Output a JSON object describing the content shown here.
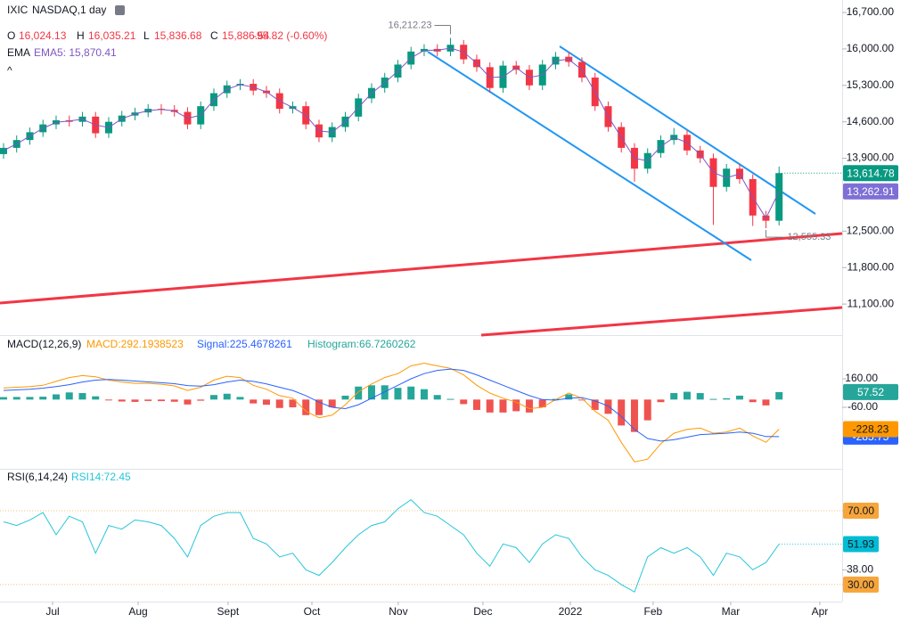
{
  "header": {
    "symbol": "IXIC",
    "exchange_interval": "NASDAQ,1 day",
    "ohlc": [
      {
        "label": "O",
        "value": "16,024.13"
      },
      {
        "label": "H",
        "value": "16,035.21"
      },
      {
        "label": "L",
        "value": "15,836.68"
      },
      {
        "label": "C",
        "value": "15,886.54"
      }
    ],
    "change": "-95.82 (-0.60%)",
    "ema_title": "EMA",
    "ema_value": "EMA5: 15,870.41",
    "collapse": "^"
  },
  "chart_data": [
    {
      "type": "candlestick",
      "up_color": "#089981",
      "down_color": "#f23645",
      "open": [
        13980,
        14100,
        14250,
        14400,
        14550,
        14630,
        14600,
        14700,
        14380,
        14600,
        14720,
        14780,
        14850,
        14830,
        14790,
        14550,
        14900,
        15150,
        15300,
        15330,
        15200,
        15150,
        14850,
        14900,
        14550,
        14300,
        14500,
        14700,
        15050,
        15250,
        15450,
        15700,
        15950,
        16000,
        15950,
        16080,
        15800,
        15650,
        15250,
        15680,
        15600,
        15300,
        15700,
        15850,
        15750,
        15450,
        14900,
        14500,
        14100,
        13700,
        14000,
        14250,
        14350,
        14050,
        13900,
        13350,
        13700,
        13500,
        12800,
        12700
      ],
      "high": [
        14190,
        14340,
        14490,
        14640,
        14720,
        14720,
        14790,
        14790,
        14690,
        14810,
        14870,
        14940,
        14940,
        14920,
        14880,
        14990,
        15240,
        15390,
        15420,
        15420,
        15290,
        15240,
        14990,
        14990,
        14640,
        14590,
        14790,
        15140,
        15340,
        15540,
        15790,
        16040,
        16090,
        16090,
        16212.23,
        16170,
        15890,
        15740,
        15770,
        15770,
        15690,
        15790,
        15940,
        15940,
        15840,
        15540,
        14990,
        14590,
        14190,
        14090,
        14340,
        14480,
        14440,
        14140,
        13990,
        13790,
        13790,
        13590,
        12890,
        13740
      ],
      "low": [
        13890,
        14010,
        14160,
        14310,
        14460,
        14510,
        14510,
        14290,
        14290,
        14510,
        14630,
        14690,
        14740,
        14700,
        14460,
        14460,
        14810,
        15060,
        15210,
        15110,
        15060,
        14760,
        14760,
        14460,
        14210,
        14210,
        14410,
        14610,
        14960,
        15160,
        15360,
        15610,
        15860,
        15860,
        15860,
        15710,
        15560,
        15160,
        15160,
        15510,
        15210,
        15210,
        15610,
        15660,
        15360,
        14810,
        14410,
        14010,
        13450,
        13610,
        13910,
        14160,
        13960,
        13810,
        12620,
        13260,
        13410,
        12600,
        12555.33,
        12610
      ],
      "close": [
        14100,
        14250,
        14400,
        14550,
        14630,
        14600,
        14700,
        14380,
        14600,
        14720,
        14780,
        14850,
        14830,
        14790,
        14550,
        14900,
        15150,
        15300,
        15330,
        15200,
        15150,
        14850,
        14900,
        14550,
        14300,
        14500,
        14700,
        15050,
        15250,
        15450,
        15700,
        15950,
        16000,
        15950,
        16080,
        15800,
        15650,
        15250,
        15680,
        15600,
        15300,
        15700,
        15850,
        15750,
        15450,
        14900,
        14500,
        14100,
        13700,
        14000,
        14250,
        14350,
        14050,
        13900,
        13350,
        13700,
        13500,
        12800,
        12700,
        13614.78
      ],
      "series": [
        {
          "color": "#7e57c2",
          "values": [
            14050,
            14175,
            14325,
            14475,
            14590,
            14615,
            14650,
            14540,
            14490,
            14660,
            14750,
            14815,
            14840,
            14810,
            14670,
            14725,
            15025,
            15225,
            15315,
            15265,
            15175,
            15000,
            14875,
            14725,
            14425,
            14400,
            14600,
            14875,
            15150,
            15350,
            15575,
            15825,
            15975,
            15975,
            16015,
            15940,
            15725,
            15450,
            15465,
            15640,
            15450,
            15500,
            15775,
            15800,
            15600,
            15175,
            14700,
            14300,
            13900,
            13850,
            14125,
            14300,
            14200,
            13975,
            13625,
            13525,
            13600,
            13150,
            12750,
            13262.91
          ]
        }
      ],
      "ylim": [
        10520,
        16940
      ],
      "yticks": [
        {
          "value": 16700,
          "label": "16,700.00"
        },
        {
          "value": 16000,
          "label": "16,000.00"
        },
        {
          "value": 15300,
          "label": "15,300.00"
        },
        {
          "value": 14600,
          "label": "14,600.00"
        },
        {
          "value": 13900,
          "label": "13,900.00"
        },
        {
          "value": 12500,
          "label": "12,500.00"
        },
        {
          "value": 11800,
          "label": "11,800.00"
        },
        {
          "value": 11100,
          "label": "11,100.00"
        }
      ],
      "xlim": [
        -0.27,
        63.8
      ],
      "xticks": [
        {
          "value": 3.73,
          "label": "Jul"
        },
        {
          "value": 10.24,
          "label": "Aug"
        },
        {
          "value": 17.08,
          "label": "Sept"
        },
        {
          "value": 23.46,
          "label": "Oct"
        },
        {
          "value": 30.03,
          "label": "Nov"
        },
        {
          "value": 36.47,
          "label": "Dec"
        },
        {
          "value": 43.12,
          "label": "2022"
        },
        {
          "value": 49.42,
          "label": "Feb"
        },
        {
          "value": 55.32,
          "label": "Mar"
        },
        {
          "value": 62.1,
          "label": "Apr"
        }
      ],
      "max_label": "16,212.23",
      "min_label": "12,555.33",
      "close_label": "13,614.78",
      "ema_label": "13,262.91"
    },
    {
      "type": "macd",
      "title": "MACD(12,26,9)",
      "legend": [
        "MACD:292.1938523",
        "Signal:225.4678261",
        "Histogram:66.7260262"
      ],
      "series": [
        {
          "color": "#ff9800",
          "values": [
            89,
            95,
            100,
            110,
            140,
            170,
            185,
            175,
            150,
            135,
            125,
            125,
            118,
            105,
            70,
            95,
            150,
            180,
            170,
            110,
            80,
            30,
            10,
            -90,
            -140,
            -120,
            -40,
            60,
            120,
            170,
            200,
            260,
            280,
            260,
            240,
            190,
            110,
            50,
            10,
            -20,
            -70,
            -60,
            0,
            50,
            10,
            -90,
            -160,
            -330,
            -480,
            -460,
            -340,
            -260,
            -230,
            -220,
            -260,
            -250,
            -220,
            -280,
            -330,
            -228.23
          ],
          "value_label": "-228.23"
        },
        {
          "color": "#2962ff",
          "values": [
            70,
            75,
            80,
            88,
            100,
            115,
            135,
            150,
            155,
            150,
            143,
            136,
            130,
            122,
            108,
            104,
            115,
            135,
            150,
            140,
            120,
            95,
            70,
            30,
            -20,
            -60,
            -70,
            -40,
            10,
            60,
            110,
            160,
            200,
            225,
            235,
            225,
            190,
            150,
            110,
            70,
            30,
            0,
            -5,
            10,
            15,
            -10,
            -50,
            -130,
            -230,
            -300,
            -320,
            -310,
            -290,
            -270,
            -265,
            -260,
            -250,
            -260,
            -285,
            -285.75
          ],
          "value_label": "-285.75"
        },
        {
          "up_color": "#26a69a",
          "down_color": "#ef5350",
          "values": [
            19,
            20,
            20,
            22,
            40,
            55,
            50,
            25,
            -5,
            -15,
            -18,
            -11,
            -12,
            -17,
            -38,
            -9,
            35,
            45,
            20,
            -30,
            -40,
            -65,
            -60,
            -120,
            -120,
            -60,
            30,
            100,
            110,
            110,
            90,
            100,
            80,
            35,
            5,
            -35,
            -80,
            -100,
            -100,
            -90,
            -100,
            -60,
            5,
            40,
            -5,
            -80,
            -110,
            -200,
            -250,
            -160,
            -20,
            50,
            60,
            50,
            5,
            10,
            30,
            -20,
            -45,
            57.52
          ],
          "value_label": "57.52"
        }
      ],
      "ylim": [
        -527,
        483
      ],
      "yticks": [
        {
          "value": 160,
          "label": "160.00"
        },
        {
          "value": -60,
          "label": "-60.00"
        }
      ]
    },
    {
      "type": "rsi",
      "title": "RSI(6,14,24)",
      "legend": "RSI14:72.45",
      "series": [
        {
          "color": "#26c6da",
          "values": [
            64,
            62,
            65,
            69,
            57,
            67,
            64,
            47,
            62,
            60,
            65,
            64,
            62,
            55,
            45,
            62,
            67,
            69,
            69,
            55,
            52,
            45,
            47,
            38,
            35,
            42,
            50,
            57,
            62,
            64,
            71,
            76,
            69,
            67,
            62,
            57,
            47,
            40,
            52,
            50,
            42,
            52,
            57,
            55,
            45,
            38,
            35,
            30,
            26,
            45,
            50,
            47,
            50,
            45,
            35,
            47,
            45,
            38,
            42,
            51.93
          ],
          "value_label": "51.93"
        }
      ],
      "ylim": [
        20.8,
        92.2
      ],
      "yticks": [
        {
          "value": 70,
          "label": "70.00"
        },
        {
          "value": 38,
          "label": "38.00"
        },
        {
          "value": 30,
          "label": "30.00"
        }
      ]
    }
  ]
}
